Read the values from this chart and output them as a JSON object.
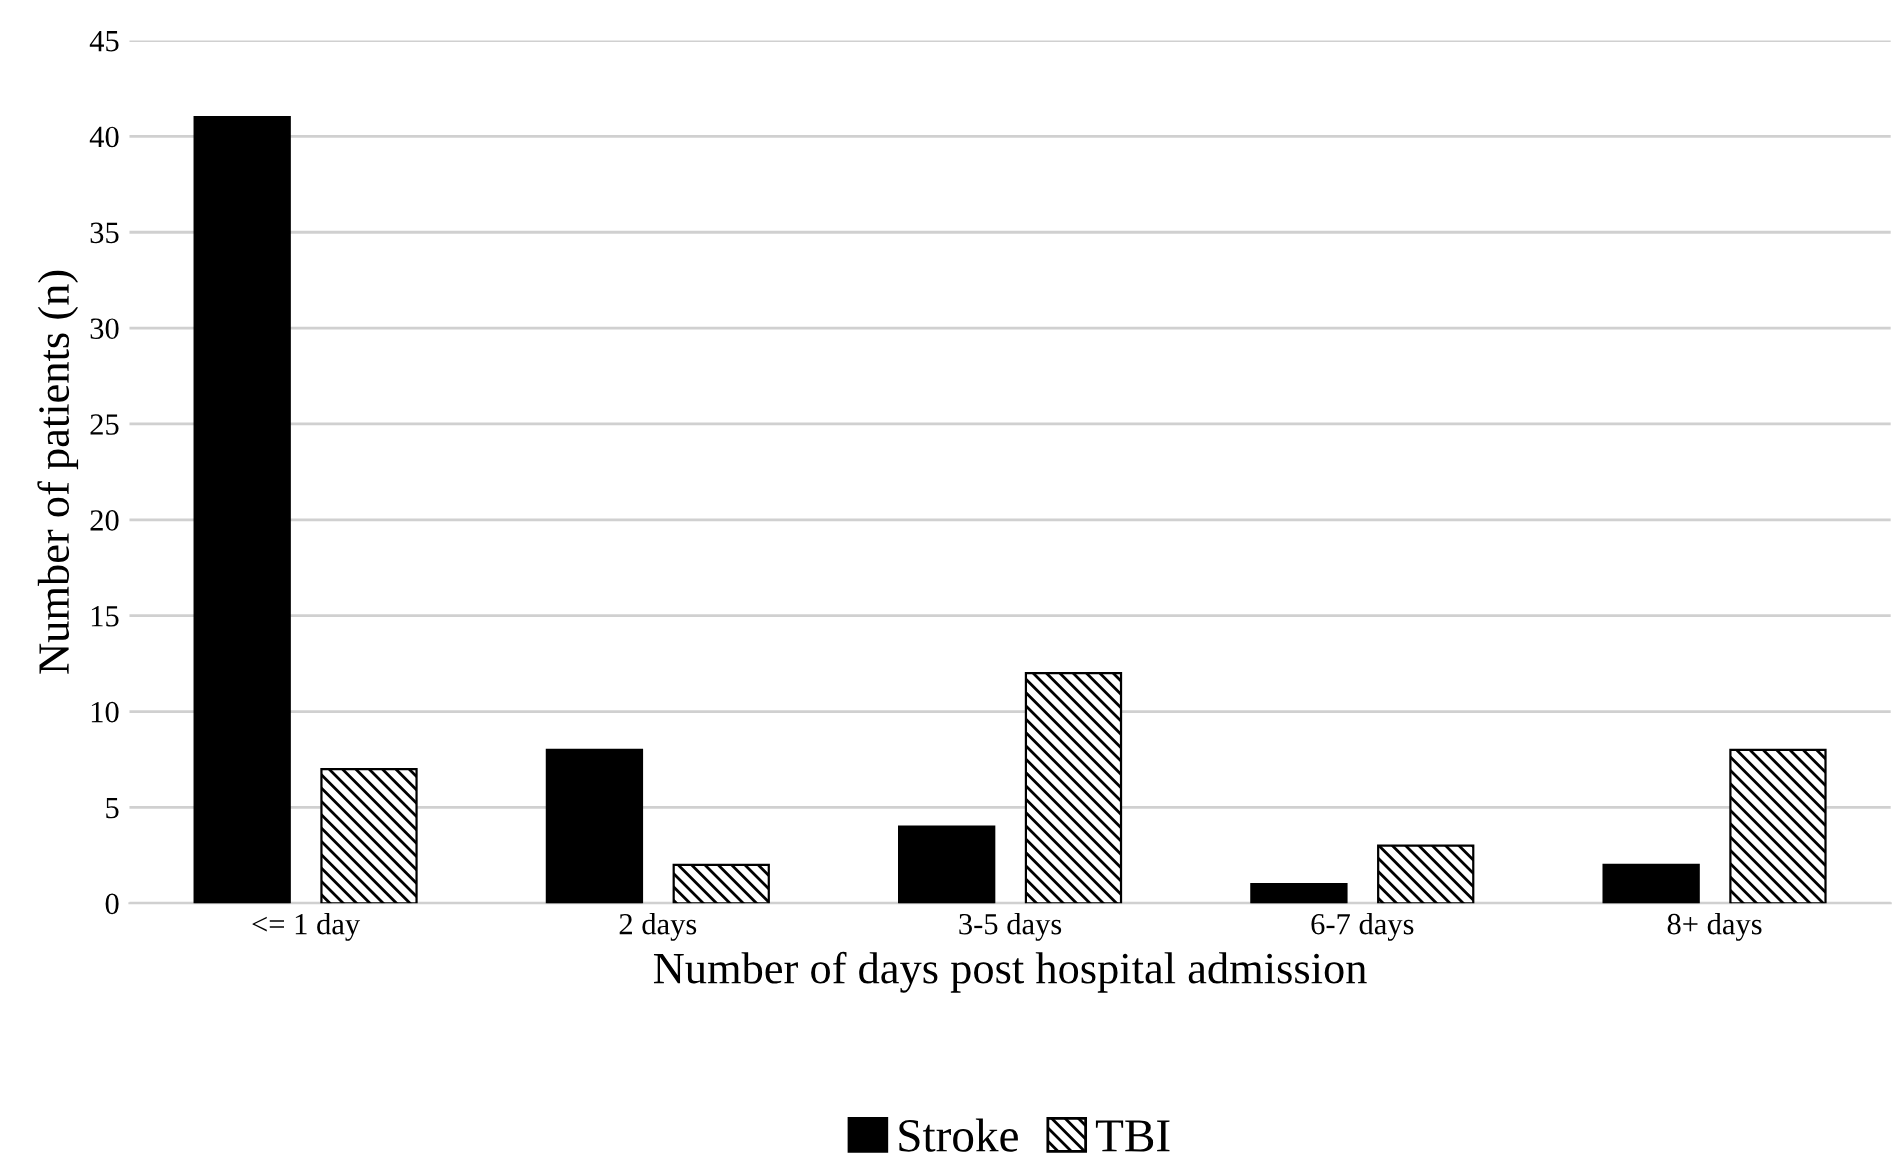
{
  "chart_data": {
    "type": "bar",
    "xlabel": "Number of days post hospital admission",
    "ylabel": "Number of patients (n)",
    "categories": [
      "<= 1 day",
      "2 days",
      "3-5 days",
      "6-7 days",
      "8+ days"
    ],
    "series": [
      {
        "name": "Stroke",
        "color": "#000000",
        "values": [
          41,
          8,
          4,
          1,
          2
        ]
      },
      {
        "name": "TBI",
        "color": "#000000",
        "values": [
          7,
          2,
          12,
          3,
          8
        ]
      }
    ],
    "ylim": [
      0,
      45
    ],
    "yticks": [
      0,
      5,
      10,
      15,
      20,
      25,
      30,
      35,
      40,
      45
    ],
    "grid": "y",
    "legend": "bottom"
  }
}
